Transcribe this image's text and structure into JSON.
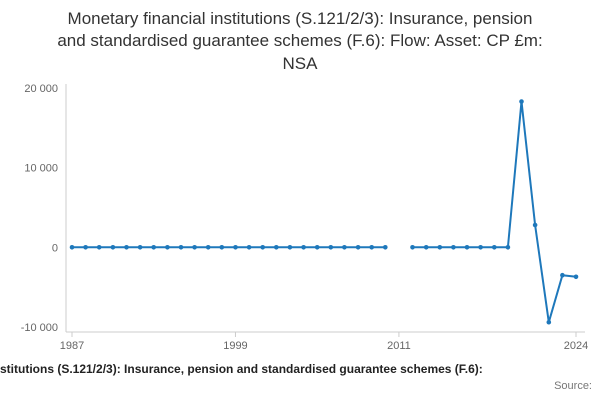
{
  "title": "Monetary financial institutions (S.121/2/3): Insurance, pension and standardised guarantee schemes (F.6): Flow: Asset: CP £m: NSA",
  "footer": {
    "caption": "stitutions (S.121/2/3): Insurance, pension and standardised guarantee schemes (F.6):",
    "source_label": "Source:"
  },
  "chart_data": {
    "type": "line",
    "title": "Monetary financial institutions (S.121/2/3): Insurance, pension and standardised guarantee schemes (F.6): Flow: Asset: CP £m: NSA",
    "xlabel": "",
    "ylabel": "",
    "x_range": [
      1987,
      2024
    ],
    "ylim": [
      -10000,
      20000
    ],
    "grid": false,
    "legend_position": "none",
    "line_color": "#1e78bb",
    "axis_color": "#cccccc",
    "tick_label_color": "#666666",
    "yticks": [
      {
        "label": "20 000",
        "value": 20000
      },
      {
        "label": "10 000",
        "value": 10000
      },
      {
        "label": "0",
        "value": 0
      },
      {
        "label": "-10 000",
        "value": -10000
      }
    ],
    "xticks": [
      {
        "label": "1987",
        "year": 1987
      },
      {
        "label": "1999",
        "year": 1999
      },
      {
        "label": "2011",
        "year": 2011
      },
      {
        "label": "2024",
        "year": 2024
      }
    ],
    "years": [
      1987,
      1988,
      1989,
      1990,
      1991,
      1992,
      1993,
      1994,
      1995,
      1996,
      1997,
      1998,
      1999,
      2000,
      2001,
      2002,
      2003,
      2004,
      2005,
      2006,
      2007,
      2008,
      2009,
      2010,
      2011,
      2012,
      2013,
      2014,
      2015,
      2016,
      2017,
      2018,
      2019,
      2020,
      2021,
      2022,
      2023,
      2024
    ],
    "values": [
      0,
      0,
      0,
      0,
      0,
      0,
      0,
      0,
      0,
      0,
      0,
      0,
      0,
      0,
      0,
      0,
      0,
      0,
      0,
      0,
      0,
      0,
      0,
      0,
      null,
      0,
      0,
      0,
      0,
      0,
      0,
      0,
      0,
      18300,
      2800,
      -9400,
      -3500,
      -3700
    ]
  }
}
